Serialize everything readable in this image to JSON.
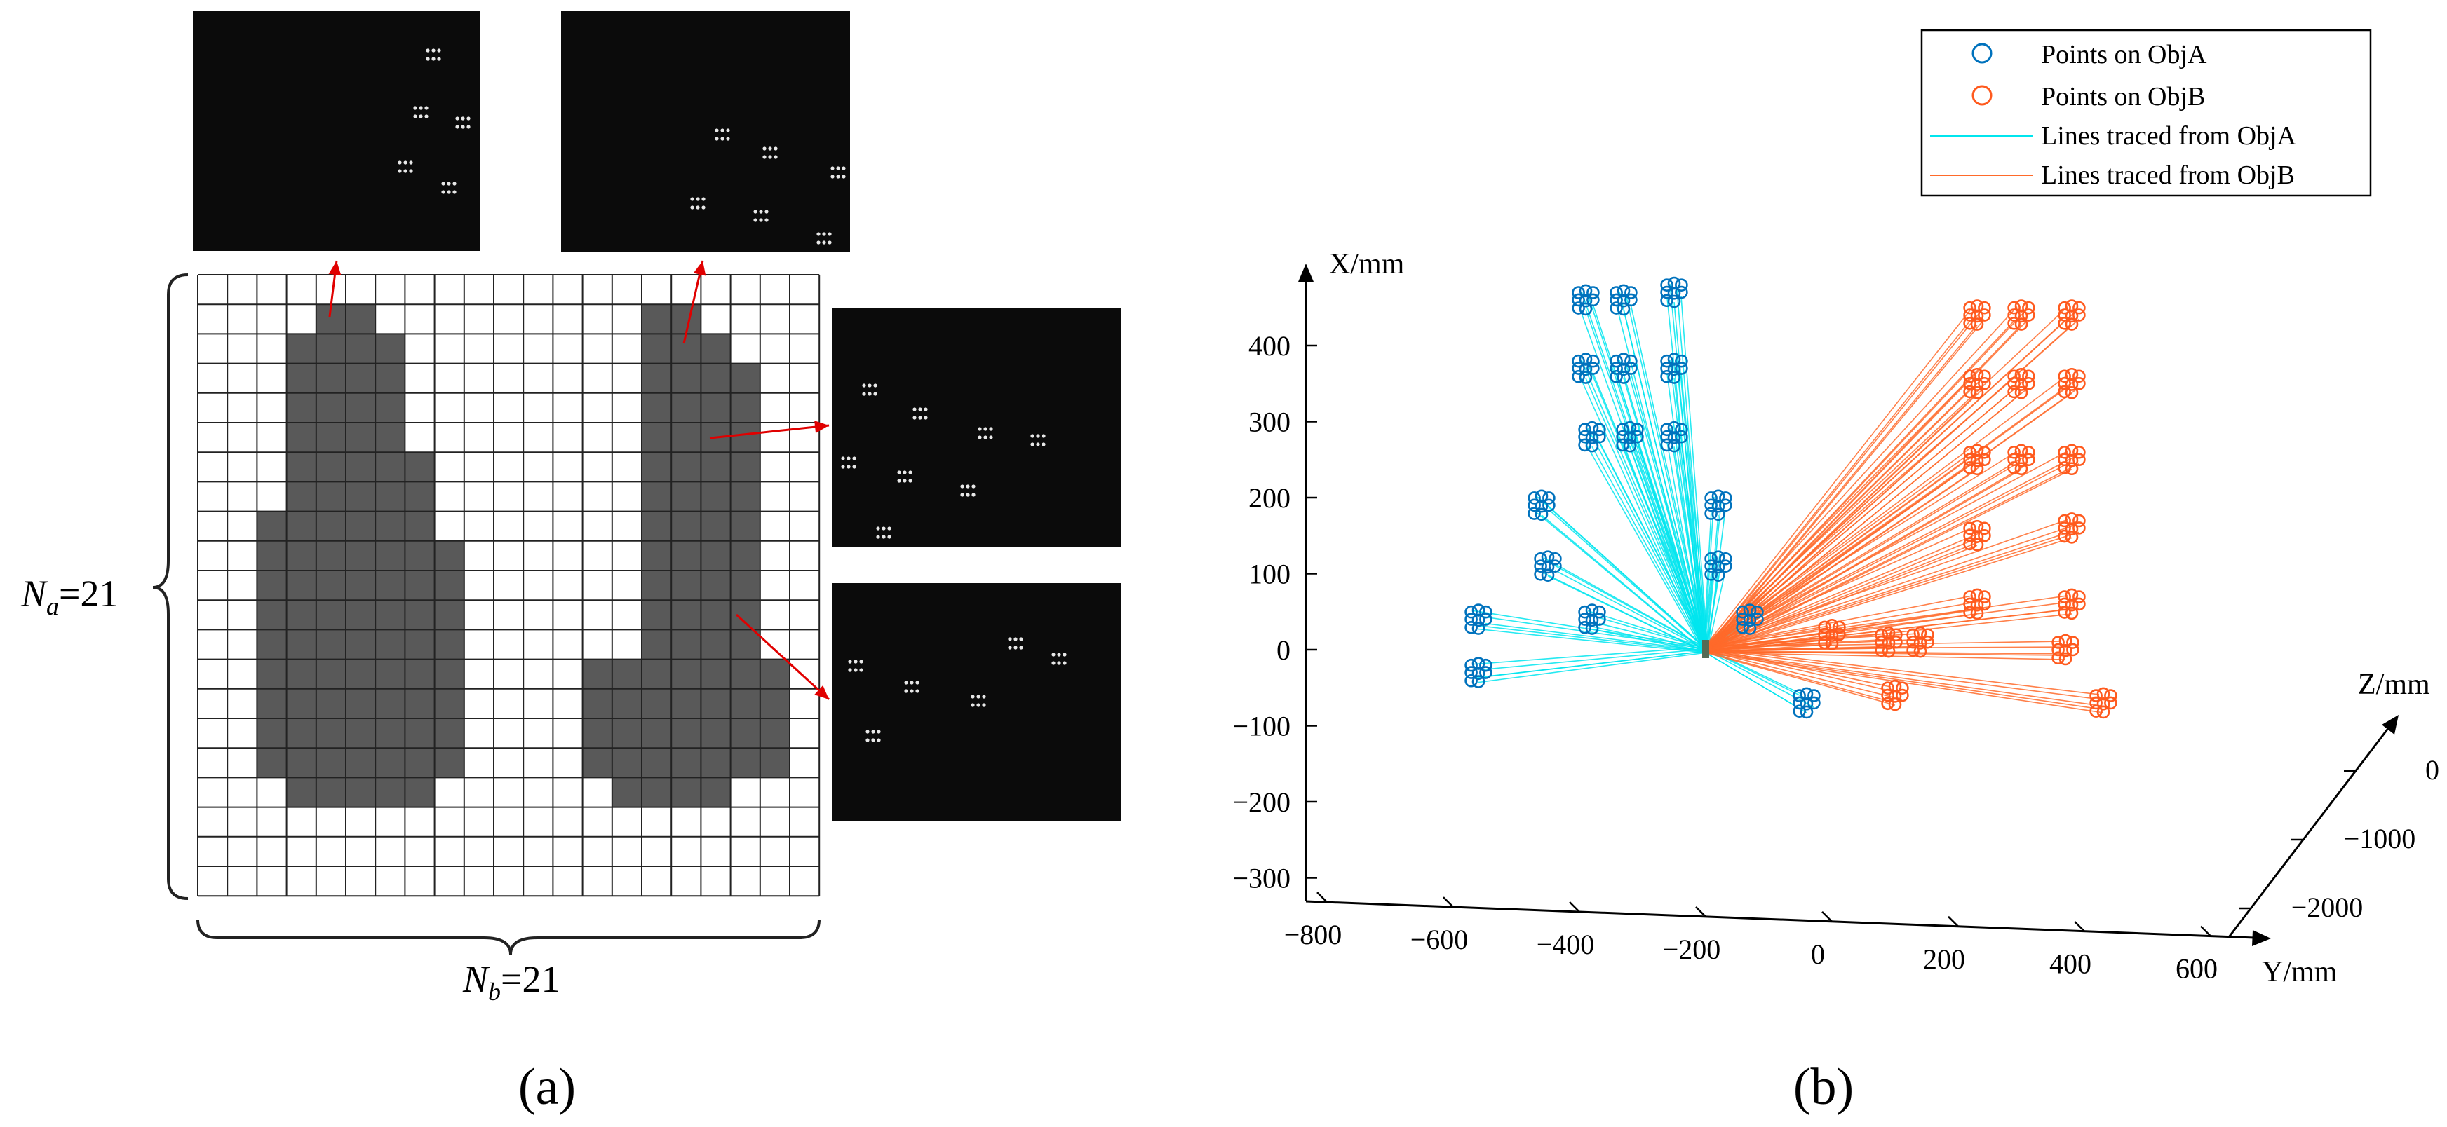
{
  "panel_a": {
    "label": "(a)",
    "label_a_text": "N",
    "label_a_sub": "a",
    "label_a_value": "=21",
    "label_b_text": "N",
    "label_b_sub": "b",
    "label_b_value": "=21",
    "grid_rows": 21,
    "grid_cols": 21,
    "colors": {
      "filled": "#595959",
      "empty": "#ffffff",
      "line": "#222222",
      "arrow": "#e00000",
      "photo_bg": "#0b0b0b",
      "dot": "#e8e8e8"
    },
    "selection_grid": [
      "000000000000000000000",
      "000011000000000110000",
      "000111100000000111000",
      "000111100000000111100",
      "000111100000000111100",
      "000111100000000111100",
      "000111110000000111100",
      "000111110000000111100",
      "001111110000000111100",
      "001111111000000111100",
      "001111111000000111100",
      "001111111000000111100",
      "001111111000000111100",
      "001111111000011111110",
      "001111111000011111110",
      "001111111000011111110",
      "001111111000011111110",
      "000111110000001111000",
      "000000000000000000000",
      "000000000000000000000",
      "000000000000000000000"
    ],
    "insets": [
      {
        "name": "inset-top-left"
      },
      {
        "name": "inset-top-right"
      },
      {
        "name": "inset-right-upper"
      },
      {
        "name": "inset-right-lower"
      }
    ]
  },
  "panel_b": {
    "label": "(b)"
  },
  "chart_data": {
    "type": "scatter",
    "projection": "3d",
    "title": "",
    "axes": {
      "x": {
        "label": "X/mm",
        "ticks": [
          "400",
          "300",
          "200",
          "100",
          "0",
          "−100",
          "−200",
          "−300"
        ],
        "range": [
          -300,
          400
        ]
      },
      "y": {
        "label": "Y/mm",
        "ticks": [
          "−800",
          "−600",
          "−400",
          "−200",
          "0",
          "200",
          "400",
          "600"
        ],
        "range": [
          -800,
          600
        ]
      },
      "z": {
        "label": "Z/mm",
        "ticks": [
          "0",
          "−1000",
          "−2000"
        ],
        "range": [
          -2000,
          0
        ]
      }
    },
    "legend": {
      "position": "top-right",
      "entries": [
        {
          "label": "Points on ObjA",
          "kind": "marker",
          "color": "#0072bd"
        },
        {
          "label": "Points on ObjB",
          "kind": "marker",
          "color": "#ff5a1e"
        },
        {
          "label": "Lines traced from ObjA",
          "kind": "line",
          "color": "#00e5ee"
        },
        {
          "label": "Lines traced from ObjB",
          "kind": "line",
          "color": "#ff6a2a"
        }
      ]
    },
    "origin_point": {
      "y": -200,
      "x": 0
    },
    "series": [
      {
        "name": "Points on ObjA",
        "clusters": [
          {
            "y": -390,
            "x": 460
          },
          {
            "y": -330,
            "x": 460
          },
          {
            "y": -250,
            "x": 470
          },
          {
            "y": -390,
            "x": 370
          },
          {
            "y": -330,
            "x": 370
          },
          {
            "y": -250,
            "x": 370
          },
          {
            "y": -380,
            "x": 280
          },
          {
            "y": -320,
            "x": 280
          },
          {
            "y": -250,
            "x": 280
          },
          {
            "y": -460,
            "x": 190
          },
          {
            "y": -180,
            "x": 190
          },
          {
            "y": -450,
            "x": 110
          },
          {
            "y": -180,
            "x": 110
          },
          {
            "y": -560,
            "x": 40
          },
          {
            "y": -380,
            "x": 40
          },
          {
            "y": -130,
            "x": 40
          },
          {
            "y": -560,
            "x": -30
          },
          {
            "y": -40,
            "x": -70
          }
        ]
      },
      {
        "name": "Points on ObjB",
        "clusters": [
          {
            "y": 230,
            "x": 440
          },
          {
            "y": 300,
            "x": 440
          },
          {
            "y": 380,
            "x": 440
          },
          {
            "y": 230,
            "x": 350
          },
          {
            "y": 300,
            "x": 350
          },
          {
            "y": 380,
            "x": 350
          },
          {
            "y": 230,
            "x": 250
          },
          {
            "y": 300,
            "x": 250
          },
          {
            "y": 380,
            "x": 250
          },
          {
            "y": 230,
            "x": 150
          },
          {
            "y": 380,
            "x": 160
          },
          {
            "y": 230,
            "x": 60
          },
          {
            "y": 380,
            "x": 60
          },
          {
            "y": 90,
            "x": 10
          },
          {
            "y": 140,
            "x": 10
          },
          {
            "y": 370,
            "x": 0
          },
          {
            "y": 100,
            "x": -60
          },
          {
            "y": 430,
            "x": -70
          },
          {
            "y": 0,
            "x": 20
          }
        ]
      }
    ]
  }
}
